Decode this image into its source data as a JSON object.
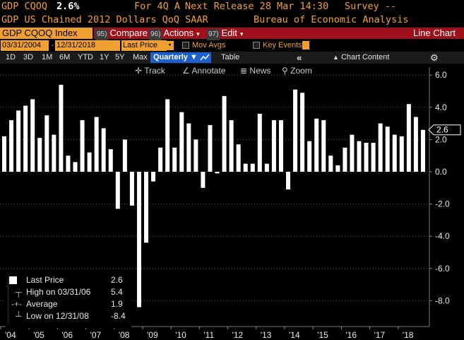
{
  "header": {
    "ticker": "GDP CQOQ",
    "last": "2.6%",
    "period": "For 4Q A",
    "next_release": "Next Release 28 Mar 14:30",
    "survey": "Survey --",
    "description": "GDP US Chained 2012 Dollars QoQ SAAR",
    "source": "Bureau of Economic Analysis"
  },
  "toolbar": {
    "security": "GDP CQOQ Index",
    "compare_num": "95)",
    "compare": "Compare",
    "actions_num": "96)",
    "actions": "Actions",
    "edit_num": "97)",
    "edit": "Edit",
    "chart_type": "Line Chart"
  },
  "range": {
    "start": "03/31/2004",
    "end": "12/31/2018",
    "field": "Last Price",
    "mov_avgs": "Mov Avgs",
    "key_events": "Key Events"
  },
  "periods": [
    "1D",
    "3D",
    "1M",
    "6M",
    "YTD",
    "1Y",
    "5Y",
    "Max"
  ],
  "frequency": "Quarterly",
  "table_label": "Table",
  "chart_content": "Chart Content",
  "tools": {
    "track": "Track",
    "annotate": "Annotate",
    "news": "News",
    "zoom": "Zoom"
  },
  "legend": {
    "last_label": "Last Price",
    "last_value": "2.6",
    "high_label": "High on 03/31/06",
    "high_value": "5.4",
    "avg_label": "Average",
    "avg_value": "1.9",
    "low_label": "Low on 12/31/08",
    "low_value": "-8.4"
  },
  "colors": {
    "background": "#000000",
    "amber": "#f0a030",
    "bars": "#ffffff",
    "red_bar": "#a0101a",
    "frequency_blue": "#1e5fd0"
  },
  "chart_data": {
    "type": "bar",
    "title": "",
    "xlabel": "",
    "ylabel": "",
    "ylim": [
      -9.5,
      6.5
    ],
    "y_ticks": [
      "6.0",
      "4.0",
      "2.0",
      "0.0",
      "-2.0",
      "-4.0",
      "-6.0",
      "-8.0"
    ],
    "y_tick_values": [
      6,
      4,
      2,
      0,
      -2,
      -4,
      -6,
      -8
    ],
    "x_tick_labels": [
      "'04",
      "'05",
      "'06",
      "'07",
      "'08",
      "'09",
      "'10",
      "'11",
      "'12",
      "'13",
      "'14",
      "'15",
      "'16",
      "'17",
      "'18"
    ],
    "last_value_label": "2.6",
    "categories": [
      "2004Q1",
      "2004Q2",
      "2004Q3",
      "2004Q4",
      "2005Q1",
      "2005Q2",
      "2005Q3",
      "2005Q4",
      "2006Q1",
      "2006Q2",
      "2006Q3",
      "2006Q4",
      "2007Q1",
      "2007Q2",
      "2007Q3",
      "2007Q4",
      "2008Q1",
      "2008Q2",
      "2008Q3",
      "2008Q4",
      "2009Q1",
      "2009Q2",
      "2009Q3",
      "2009Q4",
      "2010Q1",
      "2010Q2",
      "2010Q3",
      "2010Q4",
      "2011Q1",
      "2011Q2",
      "2011Q3",
      "2011Q4",
      "2012Q1",
      "2012Q2",
      "2012Q3",
      "2012Q4",
      "2013Q1",
      "2013Q2",
      "2013Q3",
      "2013Q4",
      "2014Q1",
      "2014Q2",
      "2014Q3",
      "2014Q4",
      "2015Q1",
      "2015Q2",
      "2015Q3",
      "2015Q4",
      "2016Q1",
      "2016Q2",
      "2016Q3",
      "2016Q4",
      "2017Q1",
      "2017Q2",
      "2017Q3",
      "2017Q4",
      "2018Q1",
      "2018Q2",
      "2018Q3",
      "2018Q4"
    ],
    "values": [
      2.2,
      3.2,
      3.8,
      4.1,
      4.5,
      2.1,
      3.5,
      2.3,
      5.4,
      1.0,
      0.6,
      3.2,
      1.2,
      3.4,
      2.7,
      1.4,
      -2.3,
      2.0,
      -2.1,
      -8.4,
      -4.4,
      -0.6,
      1.5,
      4.5,
      1.5,
      3.7,
      3.0,
      2.0,
      -1.0,
      2.9,
      -0.1,
      4.7,
      3.2,
      1.7,
      0.5,
      0.5,
      3.6,
      0.5,
      3.2,
      3.2,
      -1.1,
      5.1,
      4.9,
      1.9,
      3.3,
      3.2,
      1.0,
      0.4,
      1.5,
      2.3,
      1.9,
      1.8,
      1.8,
      3.0,
      2.8,
      2.3,
      2.2,
      4.2,
      3.4,
      2.6
    ]
  }
}
